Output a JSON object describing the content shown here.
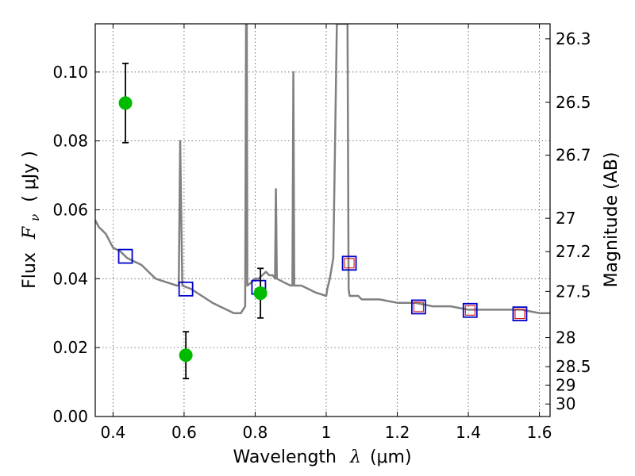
{
  "chart_data": {
    "type": "scatter",
    "title": "",
    "xlabel": "Wavelength",
    "xlabel_symbol": "λ",
    "xlabel_unit": "(μm)",
    "ylabel": "Flux",
    "ylabel_symbol": "F",
    "ylabel_symbol_sub": "ν",
    "ylabel_unit": "( μJy )",
    "y2label": "Magnitude (AB)",
    "xlim": [
      0.35,
      1.63
    ],
    "ylim": [
      0.0,
      0.114
    ],
    "grid": true,
    "x_ticks": [
      0.4,
      0.6,
      0.8,
      1.0,
      1.2,
      1.4,
      1.6
    ],
    "x_tick_labels": [
      "0.4",
      "0.6",
      "0.8",
      "1",
      "1.2",
      "1.4",
      "1.6"
    ],
    "y_ticks": [
      0.0,
      0.02,
      0.04,
      0.06,
      0.08,
      0.1
    ],
    "y_tick_labels": [
      "0.00",
      "0.02",
      "0.04",
      "0.06",
      "0.08",
      "0.10"
    ],
    "mag_ticks": [
      26.3,
      26.5,
      26.7,
      27,
      27.2,
      27.5,
      28,
      28.5,
      29,
      30
    ],
    "mag_tick_labels": [
      "26.3",
      "26.5",
      "26.7",
      "27",
      "27.2",
      "27.5",
      "28",
      "28.5",
      "29",
      "30"
    ],
    "colors": {
      "model": "#808080",
      "observed": "#00bb00",
      "model_band": "#0000cc",
      "model_band_inner": "#cc0000",
      "errorbar": "#000000",
      "grid": "#555555"
    },
    "series": [
      {
        "kind": "model_spectrum",
        "style": "line",
        "x": [
          0.35,
          0.36,
          0.37,
          0.38,
          0.39,
          0.4,
          0.42,
          0.44,
          0.46,
          0.48,
          0.5,
          0.52,
          0.55,
          0.58,
          0.585,
          0.589,
          0.595,
          0.62,
          0.65,
          0.68,
          0.7,
          0.72,
          0.74,
          0.76,
          0.772,
          0.7745,
          0.7765,
          0.778,
          0.79,
          0.8,
          0.81,
          0.82,
          0.83,
          0.84,
          0.85,
          0.856,
          0.8585,
          0.861,
          0.88,
          0.9,
          0.905,
          0.9075,
          0.91,
          0.93,
          0.95,
          0.97,
          1.0,
          1.003,
          1.01,
          1.02,
          1.03,
          1.035,
          1.04,
          1.06,
          1.063,
          1.066,
          1.09,
          1.1,
          1.15,
          1.2,
          1.25,
          1.3,
          1.35,
          1.4,
          1.45,
          1.5,
          1.55,
          1.6,
          1.63
        ],
        "y": [
          0.057,
          0.055,
          0.054,
          0.053,
          0.051,
          0.049,
          0.048,
          0.046,
          0.045,
          0.044,
          0.042,
          0.04,
          0.039,
          0.038,
          0.038,
          0.08,
          0.038,
          0.037,
          0.035,
          0.033,
          0.032,
          0.031,
          0.03,
          0.03,
          0.032,
          0.114,
          0.114,
          0.038,
          0.039,
          0.04,
          0.04,
          0.041,
          0.042,
          0.041,
          0.041,
          0.04,
          0.066,
          0.04,
          0.039,
          0.038,
          0.038,
          0.1,
          0.038,
          0.038,
          0.037,
          0.036,
          0.035,
          0.037,
          0.04,
          0.046,
          0.114,
          0.114,
          0.114,
          0.114,
          0.037,
          0.035,
          0.035,
          0.034,
          0.034,
          0.033,
          0.033,
          0.032,
          0.032,
          0.031,
          0.031,
          0.031,
          0.031,
          0.03,
          0.03
        ]
      },
      {
        "kind": "model_band_flux",
        "style": "square",
        "x": [
          0.435,
          0.605,
          0.81,
          1.065,
          1.26,
          1.405,
          1.545
        ],
        "y": [
          0.0465,
          0.037,
          0.0375,
          0.0445,
          0.0318,
          0.0308,
          0.0298
        ],
        "inner_square": [
          false,
          false,
          false,
          true,
          true,
          true,
          true
        ]
      },
      {
        "kind": "observed_flux",
        "style": "point_errorbar",
        "x": [
          0.435,
          0.605,
          0.815
        ],
        "y": [
          0.091,
          0.0178,
          0.0358
        ],
        "yerr": [
          0.0115,
          0.0068,
          0.0072
        ]
      }
    ]
  }
}
